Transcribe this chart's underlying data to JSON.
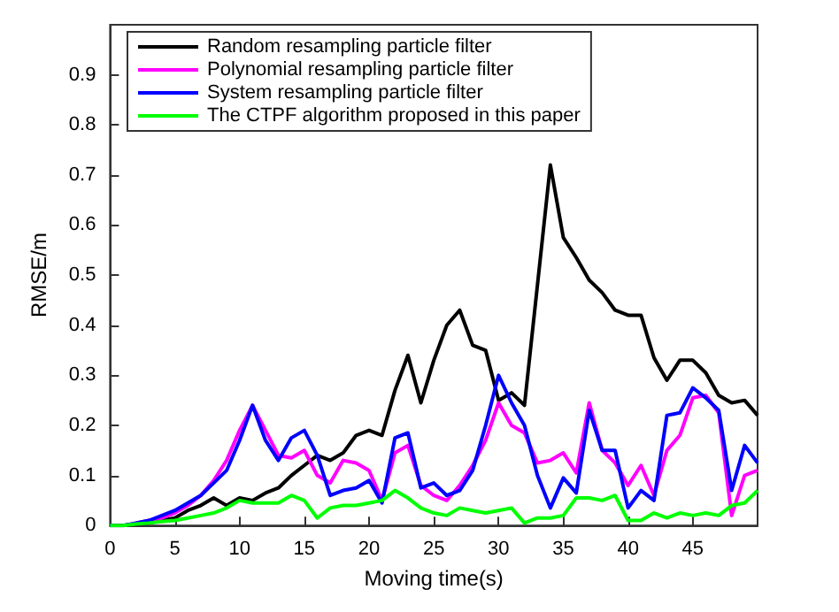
{
  "chart_data": {
    "type": "line",
    "xlabel": "Moving time(s)",
    "ylabel": "RMSE/m",
    "x": [
      0,
      1,
      2,
      3,
      4,
      5,
      6,
      7,
      8,
      9,
      10,
      11,
      12,
      13,
      14,
      15,
      16,
      17,
      18,
      19,
      20,
      21,
      22,
      23,
      24,
      25,
      26,
      27,
      28,
      29,
      30,
      31,
      32,
      33,
      34,
      35,
      36,
      37,
      38,
      39,
      40,
      41,
      42,
      43,
      44,
      45,
      46,
      47,
      48,
      49,
      50
    ],
    "xlim": [
      0,
      50
    ],
    "xticks": [
      0,
      5,
      10,
      15,
      20,
      25,
      30,
      35,
      40,
      45
    ],
    "ylim": [
      0,
      1
    ],
    "yticks": [
      0,
      0.1,
      0.2,
      0.3,
      0.4,
      0.5,
      0.6,
      0.7,
      0.8,
      0.9
    ],
    "grid": false,
    "legend": "top left",
    "marker": "none",
    "line_style": "solid",
    "series": [
      {
        "name": "Random resampling particle filter",
        "color": "#000000",
        "values": [
          0,
          0,
          0.003,
          0.005,
          0.01,
          0.015,
          0.03,
          0.04,
          0.055,
          0.04,
          0.055,
          0.05,
          0.065,
          0.075,
          0.1,
          0.12,
          0.14,
          0.13,
          0.145,
          0.18,
          0.19,
          0.18,
          0.27,
          0.34,
          0.245,
          0.33,
          0.4,
          0.43,
          0.36,
          0.35,
          0.25,
          0.265,
          0.24,
          0.48,
          0.72,
          0.575,
          0.535,
          0.49,
          0.465,
          0.43,
          0.42,
          0.42,
          0.335,
          0.29,
          0.33,
          0.33,
          0.305,
          0.26,
          0.245,
          0.25,
          0.22
        ]
      },
      {
        "name": "Polynomial resampling particle filter",
        "color": "#ff00ff",
        "values": [
          null,
          null,
          0.005,
          0.01,
          0.015,
          0.025,
          0.04,
          0.06,
          0.09,
          0.13,
          0.19,
          0.24,
          0.19,
          0.14,
          0.135,
          0.15,
          0.1,
          0.085,
          0.13,
          0.125,
          0.11,
          0.05,
          0.145,
          0.16,
          0.08,
          0.06,
          0.05,
          0.08,
          0.12,
          0.17,
          0.245,
          0.2,
          0.185,
          0.125,
          0.13,
          0.145,
          0.105,
          0.245,
          0.15,
          0.125,
          0.08,
          0.12,
          0.06,
          0.15,
          0.18,
          0.255,
          0.26,
          0.225,
          0.02,
          0.1,
          0.11
        ]
      },
      {
        "name": "System resampling particle filter",
        "color": "#0000ff",
        "values": [
          0,
          0,
          0.005,
          0.01,
          0.02,
          0.03,
          0.045,
          0.06,
          0.085,
          0.11,
          0.17,
          0.24,
          0.17,
          0.13,
          0.175,
          0.19,
          0.14,
          0.06,
          0.07,
          0.075,
          0.09,
          0.045,
          0.175,
          0.185,
          0.075,
          0.085,
          0.06,
          0.07,
          0.11,
          0.2,
          0.3,
          0.245,
          0.2,
          0.1,
          0.035,
          0.095,
          0.065,
          0.23,
          0.15,
          0.15,
          0.035,
          0.07,
          0.05,
          0.22,
          0.225,
          0.275,
          0.255,
          0.23,
          0.07,
          0.16,
          0.125
        ]
      },
      {
        "name": "The CTPF algorithm proposed in this paper",
        "color": "#00ff00",
        "values": [
          0,
          0,
          0.003,
          0.005,
          0.008,
          0.01,
          0.015,
          0.02,
          0.025,
          0.035,
          0.05,
          0.045,
          0.045,
          0.045,
          0.06,
          0.05,
          0.015,
          0.035,
          0.04,
          0.04,
          0.045,
          0.05,
          0.07,
          0.055,
          0.035,
          0.025,
          0.02,
          0.035,
          0.03,
          0.025,
          0.03,
          0.035,
          0.005,
          0.015,
          0.015,
          0.02,
          0.055,
          0.055,
          0.05,
          0.06,
          0.01,
          0.01,
          0.025,
          0.015,
          0.025,
          0.02,
          0.025,
          0.02,
          0.04,
          0.045,
          0.07
        ]
      }
    ]
  }
}
